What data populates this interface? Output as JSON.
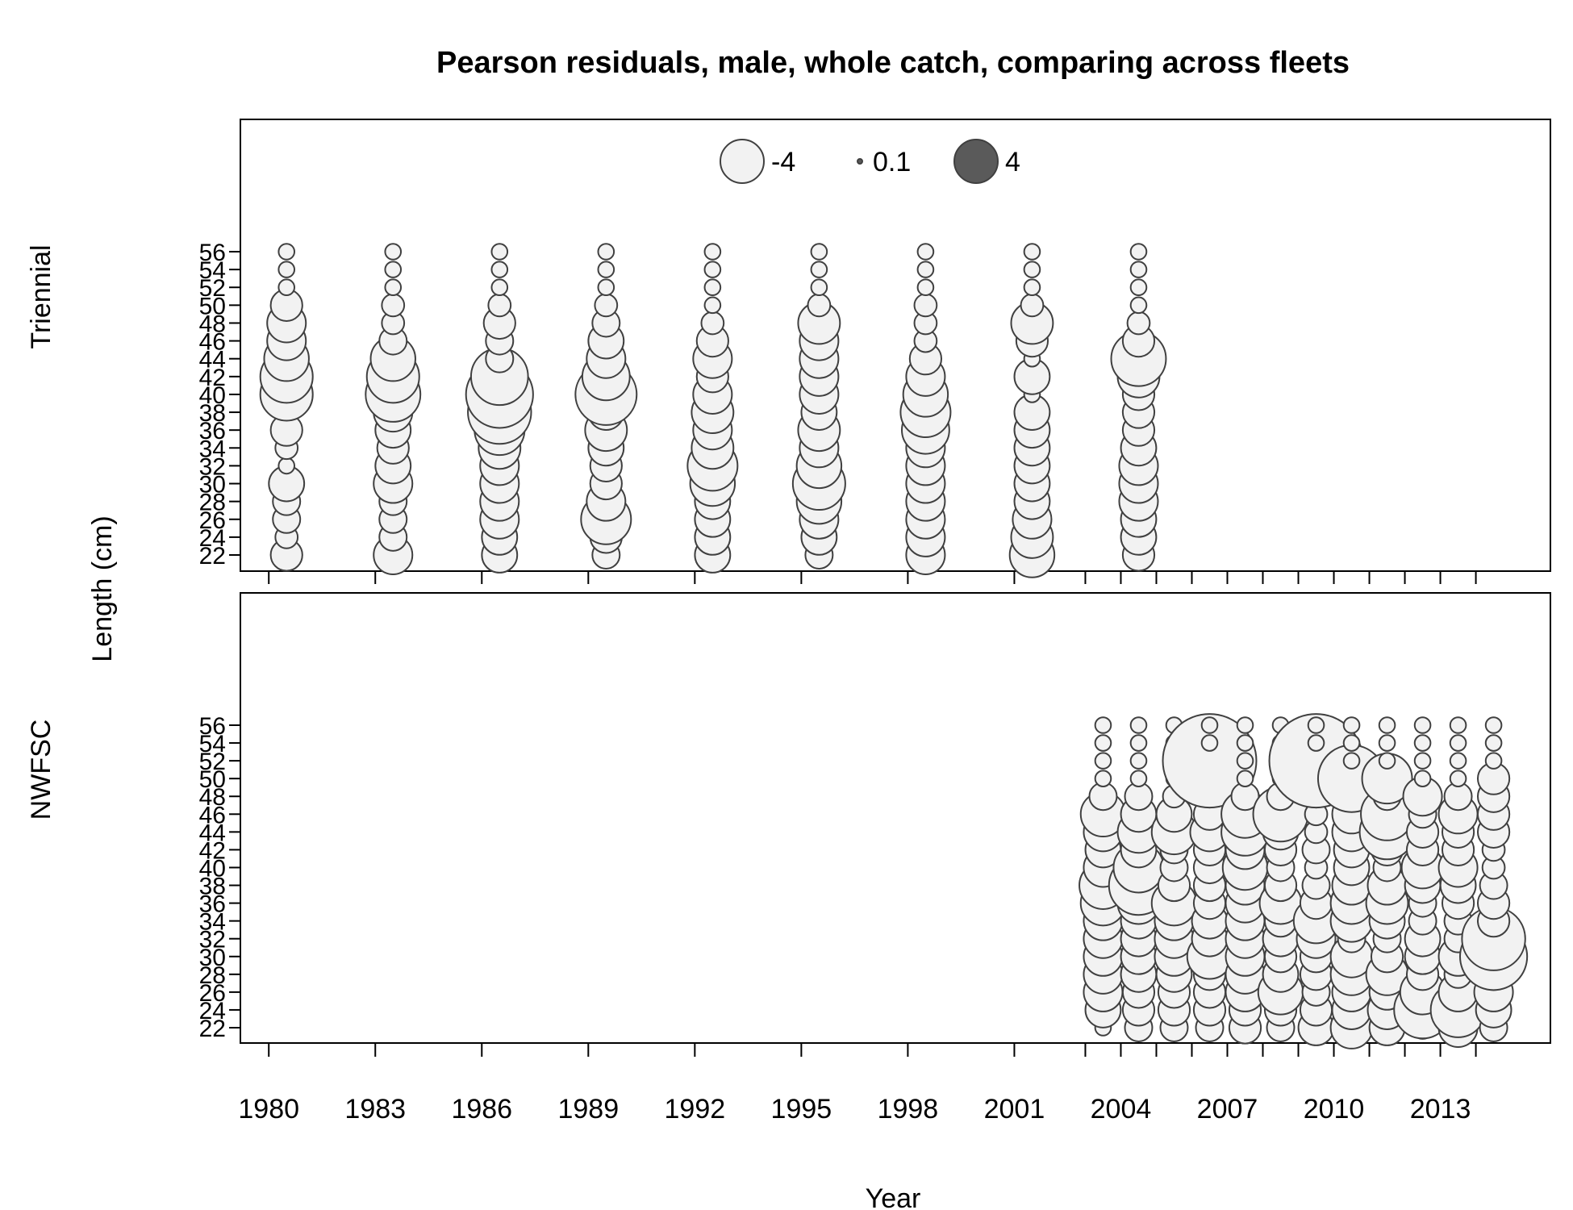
{
  "chart_data": {
    "type": "scatter",
    "title": "Pearson residuals, male, whole catch, comparing across fleets",
    "xlabel": "Year",
    "ylabel": "Length (cm)",
    "xlim": [
      1979.2,
      2016.1
    ],
    "x_ticks": [
      1980,
      1983,
      1986,
      1989,
      1992,
      1995,
      1998,
      2001,
      2004,
      2007,
      2010,
      2013
    ],
    "y_ticks": [
      22,
      24,
      26,
      28,
      30,
      32,
      34,
      36,
      38,
      40,
      42,
      44,
      46,
      48,
      50,
      52,
      54,
      56
    ],
    "ylim": [
      22,
      56
    ],
    "legend": {
      "position": "top-center",
      "entries": [
        {
          "label": "-4",
          "value": -4
        },
        {
          "label": "0.1",
          "value": 0.1
        },
        {
          "label": "4",
          "value": 4
        }
      ],
      "colors": {
        "negative": "#f2f2f2",
        "positive": "#5a5a5a",
        "stroke": "#404040"
      }
    },
    "panels": [
      {
        "name": "Triennial",
        "years": [
          1980.5,
          1983.5,
          1986.5,
          1989.5,
          1992.5,
          1995.5,
          1998.5,
          2001.5,
          2004.5
        ],
        "residuals": [
          [
            -0.4,
            -0.2,
            -0.3,
            -0.3,
            -0.5,
            -0.1,
            -0.2,
            -0.4,
            -0.1,
            -1.1,
            -1.1,
            -0.8,
            -0.6,
            -0.6,
            -0.4,
            -0.1,
            -0.1,
            -0.1
          ],
          [
            -0.6,
            -0.3,
            -0.3,
            -0.3,
            -0.6,
            -0.5,
            -0.4,
            -0.5,
            -0.6,
            -1.2,
            -1.1,
            -0.8,
            -0.3,
            -0.2,
            -0.2,
            -0.1,
            -0.1,
            -0.1
          ],
          [
            -0.5,
            -0.5,
            -0.6,
            -0.6,
            -0.6,
            -0.6,
            -0.7,
            -1.0,
            -1.6,
            -1.8,
            -1.3,
            -0.3,
            -0.3,
            -0.4,
            -0.2,
            -0.1,
            -0.1,
            -0.1
          ],
          [
            -0.3,
            -0.4,
            -1.0,
            -0.6,
            -0.4,
            -0.4,
            -0.5,
            -0.7,
            -0.5,
            -1.5,
            -0.9,
            -0.6,
            -0.5,
            -0.3,
            -0.2,
            -0.1,
            -0.1,
            -0.1
          ],
          [
            -0.5,
            -0.5,
            -0.5,
            -0.5,
            -0.8,
            -1.0,
            -0.7,
            -0.6,
            -0.7,
            -0.6,
            -0.4,
            -0.6,
            -0.4,
            -0.2,
            -0.1,
            -0.1,
            -0.1,
            -0.1
          ],
          [
            -0.3,
            -0.5,
            -0.6,
            -0.8,
            -1.1,
            -0.8,
            -0.6,
            -0.7,
            -0.5,
            -0.6,
            -0.6,
            -0.6,
            -0.6,
            -0.7,
            -0.2,
            -0.1,
            -0.1,
            -0.1
          ],
          [
            -0.6,
            -0.6,
            -0.6,
            -0.6,
            -0.6,
            -0.6,
            -0.6,
            -0.9,
            -1.0,
            -0.8,
            -0.6,
            -0.4,
            -0.2,
            -0.2,
            -0.2,
            -0.1,
            -0.1,
            -0.1
          ],
          [
            -0.8,
            -0.7,
            -0.6,
            -0.5,
            -0.5,
            -0.5,
            -0.5,
            -0.5,
            -0.5,
            -0.1,
            -0.5,
            -0.1,
            -0.4,
            -0.7,
            -0.2,
            -0.1,
            -0.1,
            -0.1
          ],
          [
            -0.4,
            -0.5,
            -0.5,
            -0.6,
            -0.6,
            -0.6,
            -0.5,
            -0.4,
            -0.4,
            -0.4,
            -0.7,
            -1.2,
            -0.4,
            -0.2,
            -0.1,
            -0.1,
            -0.1,
            -0.1
          ]
        ]
      },
      {
        "name": "NWFSC",
        "years": [
          2003.5,
          2004.5,
          2005.5,
          2006.5,
          2007.5,
          2008.5,
          2009.5,
          2010.5,
          2011.5,
          2012.5,
          2013.5,
          2014.5
        ],
        "residuals": [
          [
            -0.1,
            -0.5,
            -0.6,
            -0.6,
            -0.6,
            -0.6,
            -0.6,
            -0.8,
            -0.9,
            -0.6,
            -0.5,
            -0.6,
            -0.8,
            -0.3,
            -0.1,
            -0.1,
            -0.1,
            -0.1
          ],
          [
            -0.3,
            -0.4,
            -0.4,
            -0.5,
            -0.5,
            -0.5,
            -0.5,
            -0.7,
            -1.4,
            -1.0,
            -0.5,
            -0.7,
            -0.5,
            -0.3,
            -0.1,
            -0.1,
            -0.1,
            -0.1
          ],
          [
            -0.3,
            -0.4,
            -0.4,
            -0.5,
            -0.6,
            -0.6,
            -0.6,
            -0.8,
            -0.4,
            -0.3,
            -0.3,
            -0.8,
            -0.5,
            -0.2,
            -0.1,
            -0.1,
            -0.1,
            -0.1
          ],
          [
            -0.3,
            -0.4,
            -0.4,
            -0.4,
            -0.8,
            -0.5,
            -0.5,
            -0.4,
            -0.4,
            -0.4,
            -0.4,
            -0.6,
            -0.4,
            -0.2,
            -0.1,
            -3.5,
            -0.1,
            -0.1
          ],
          [
            -0.4,
            -0.4,
            -0.6,
            -0.6,
            -0.6,
            -0.6,
            -0.6,
            -0.6,
            -0.6,
            -0.8,
            -0.6,
            -0.9,
            -0.9,
            -0.3,
            -0.1,
            -0.1,
            -0.1,
            -0.1
          ],
          [
            -0.3,
            -0.4,
            -0.8,
            -0.5,
            -0.4,
            -0.5,
            -0.4,
            -0.7,
            -0.4,
            -0.3,
            -0.4,
            -0.5,
            -1.2,
            -0.3,
            -0.1,
            -0.1,
            -0.1,
            -0.1
          ],
          [
            -0.5,
            -0.4,
            -0.3,
            -0.4,
            -0.4,
            -0.6,
            -0.8,
            -0.4,
            -0.3,
            -0.2,
            -0.3,
            -0.2,
            -0.2,
            -0.2,
            -0.1,
            -3.5,
            -0.1,
            -0.1
          ],
          [
            -0.7,
            -0.6,
            -0.6,
            -0.7,
            -0.7,
            -0.3,
            -0.7,
            -0.7,
            -0.6,
            -0.5,
            -0.5,
            -0.6,
            -0.6,
            -0.3,
            -1.8,
            -0.1,
            -0.1,
            -0.1
          ],
          [
            -0.5,
            -0.6,
            -0.5,
            -0.7,
            -0.4,
            -0.3,
            -0.5,
            -0.7,
            -0.6,
            -0.3,
            -0.4,
            -1.2,
            -1.1,
            -0.3,
            -1.0,
            -0.1,
            -0.1,
            -0.1
          ],
          [
            -0.2,
            -1.3,
            -0.8,
            -0.4,
            -0.5,
            -0.5,
            -0.3,
            -0.3,
            -0.5,
            -0.7,
            -0.4,
            -0.4,
            -0.3,
            -0.6,
            -0.1,
            -0.1,
            -0.1,
            -0.1
          ],
          [
            -0.6,
            -1.2,
            -0.6,
            -0.3,
            -0.6,
            -0.3,
            -0.3,
            -0.4,
            -0.5,
            -0.6,
            -0.4,
            -0.4,
            -0.6,
            -0.3,
            -0.1,
            -0.1,
            -0.1,
            -0.1
          ],
          [
            -0.3,
            -0.5,
            -0.6,
            -0.4,
            -1.8,
            -1.6,
            -0.4,
            -0.4,
            -0.3,
            -0.2,
            -0.2,
            -0.4,
            -0.4,
            -0.4,
            -0.4,
            -0.1,
            -0.1,
            -0.1
          ]
        ]
      }
    ]
  }
}
